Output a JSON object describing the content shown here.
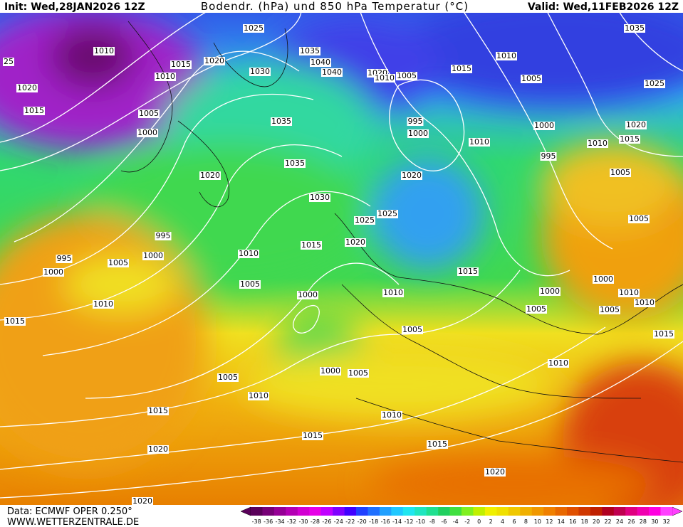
{
  "header": {
    "init": "Init: Wed,28JAN2026 12Z",
    "title": "Bodendr. (hPa) und 850 hPa Temperatur (°C)",
    "valid": "Valid: Wed,11FEB2026 12Z"
  },
  "footer": {
    "data": "Data: ECMWF OPER 0.250°",
    "site": "WWW.WETTERZENTRALE.DE"
  },
  "colorbar": {
    "labels": [
      -38,
      -36,
      -34,
      -32,
      -30,
      -28,
      -26,
      -24,
      -22,
      -20,
      -18,
      -16,
      -14,
      -12,
      -10,
      -8,
      -6,
      -4,
      -2,
      0,
      2,
      4,
      6,
      8,
      10,
      12,
      14,
      16,
      18,
      20,
      22,
      24,
      26,
      28,
      30,
      32
    ],
    "colors": [
      "#5a005a",
      "#780078",
      "#960096",
      "#b400b4",
      "#d200d2",
      "#e600e6",
      "#c000ff",
      "#8000ff",
      "#4000ff",
      "#2040ff",
      "#2070ff",
      "#20a0ff",
      "#20c8ff",
      "#20e6f0",
      "#20e6c0",
      "#20e090",
      "#20d060",
      "#40e040",
      "#80f020",
      "#c0f000",
      "#f0f000",
      "#f0e000",
      "#f0c800",
      "#f0b000",
      "#f09800",
      "#f08000",
      "#e86800",
      "#e05000",
      "#d03800",
      "#c02000",
      "#b00020",
      "#c00050",
      "#e00080",
      "#f000b0",
      "#ff00e0",
      "#ff40ff"
    ]
  },
  "isobar_labels": [
    1010,
    25,
    1015,
    1020,
    1025,
    1035,
    1040,
    1040,
    1030,
    1010,
    1020,
    1015,
    1005,
    1000,
    1035,
    1020,
    1010,
    1005,
    995,
    1000,
    1010,
    1015,
    1010,
    1005,
    1035,
    1025,
    1000,
    995,
    1010,
    1015,
    1020,
    1005,
    1035,
    1020,
    1030,
    1020,
    1025,
    1025,
    995,
    1015,
    1020,
    1010,
    995,
    1000,
    1005,
    1000,
    1005,
    1000,
    1010,
    1015,
    1000,
    1005,
    1000,
    1005,
    1010,
    1010,
    1015,
    1005,
    1010,
    1015,
    1005,
    1005,
    1000,
    1005,
    1010,
    1010,
    1015,
    1010,
    1015,
    1015,
    1020,
    1020,
    1020
  ]
}
